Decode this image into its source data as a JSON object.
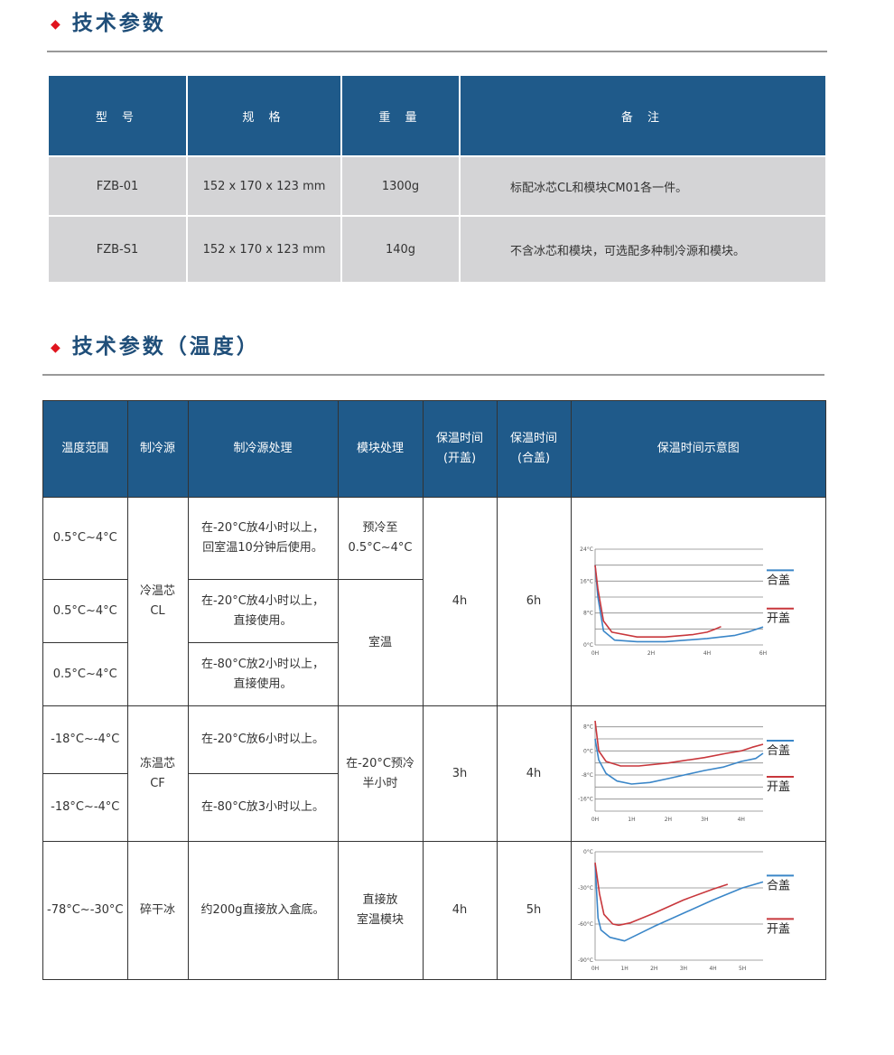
{
  "section1": {
    "title": "技术参数"
  },
  "table1": {
    "headers": [
      "型 号",
      "规 格",
      "重 量",
      "备 注"
    ],
    "rows": [
      [
        "FZB-01",
        "152 x 170 x 123 mm",
        "1300g",
        "标配冰芯CL和模块CM01各一件。"
      ],
      [
        "FZB-S1",
        "152 x 170 x 123 mm",
        "140g",
        "不含冰芯和模块，可选配多种制冷源和模块。"
      ]
    ]
  },
  "section2": {
    "title": "技术参数（温度）"
  },
  "table2": {
    "headers": [
      "温度范围",
      "制冷源",
      "制冷源处理",
      "模块处理",
      "保温时间\n(开盖)",
      "保温时间\n(合盖)",
      "保温时间示意图"
    ],
    "ranges": [
      "0.5°C~4°C",
      "0.5°C~4°C",
      "0.5°C~4°C",
      "-18°C~-4°C",
      "-18°C~-4°C",
      "-78°C~-30°C"
    ],
    "sources": [
      "冷温芯\nCL",
      "冻温芯\nCF",
      "碎干冰"
    ],
    "treatments": [
      "在-20°C放4小时以上，\n回室温10分钟后使用。",
      "在-20°C放4小时以上，\n直接使用。",
      "在-80°C放2小时以上，\n直接使用。",
      "在-20°C放6小时以上。",
      "在-80°C放3小时以上。",
      "约200g直接放入盒底。"
    ],
    "modules": [
      "预冷至\n0.5°C~4°C",
      "室温",
      "在-20°C预冷\n半小时",
      "直接放\n室温模块"
    ],
    "open_times": [
      "4h",
      "3h",
      "4h"
    ],
    "closed_times": [
      "6h",
      "4h",
      "5h"
    ]
  },
  "chart_data": [
    {
      "type": "line",
      "xlim": [
        0,
        6
      ],
      "ylim": [
        0,
        24
      ],
      "grid_step": 4,
      "yticks": [
        0,
        8,
        16,
        24
      ],
      "ytick_labels": [
        "0°C",
        "8°C",
        "16°C",
        "24°C"
      ],
      "xticks": [
        0,
        2,
        4,
        6
      ],
      "xtick_labels": [
        "0H",
        "2H",
        "4H",
        "6H"
      ],
      "legend": "right",
      "series": [
        {
          "name": "合盖",
          "color": "#3a86c8",
          "points": [
            [
              0,
              20
            ],
            [
              0.1,
              12
            ],
            [
              0.3,
              3.5
            ],
            [
              0.7,
              1.2
            ],
            [
              1.5,
              0.8
            ],
            [
              2.5,
              0.8
            ],
            [
              4,
              1.6
            ],
            [
              5,
              2.4
            ],
            [
              5.5,
              3.3
            ],
            [
              6,
              4.5
            ]
          ]
        },
        {
          "name": "开盖",
          "color": "#c8373c",
          "points": [
            [
              0,
              20
            ],
            [
              0.1,
              14
            ],
            [
              0.3,
              6
            ],
            [
              0.6,
              3.2
            ],
            [
              1.5,
              2
            ],
            [
              2.5,
              2
            ],
            [
              3.5,
              2.6
            ],
            [
              4,
              3.2
            ],
            [
              4.3,
              4
            ],
            [
              4.5,
              4.6
            ]
          ]
        }
      ]
    },
    {
      "type": "line",
      "xlim": [
        0,
        4.6
      ],
      "ylim": [
        -20,
        10
      ],
      "grid_step": 4,
      "yticks": [
        -16,
        -8,
        0,
        8
      ],
      "ytick_labels": [
        "-16°C",
        "-8°C",
        "0°C",
        "8°C"
      ],
      "xticks": [
        0,
        1,
        2,
        3,
        4
      ],
      "xtick_labels": [
        "0H",
        "1H",
        "2H",
        "3H",
        "4H"
      ],
      "legend": "right",
      "series": [
        {
          "name": "合盖",
          "color": "#3a86c8",
          "points": [
            [
              0,
              4
            ],
            [
              0.1,
              -3
            ],
            [
              0.3,
              -7.5
            ],
            [
              0.6,
              -10
            ],
            [
              1,
              -11
            ],
            [
              1.5,
              -10.5
            ],
            [
              2,
              -9.2
            ],
            [
              3,
              -6.5
            ],
            [
              3.5,
              -5.4
            ],
            [
              4,
              -3.5
            ],
            [
              4.4,
              -2.5
            ],
            [
              4.6,
              -0.8
            ]
          ]
        },
        {
          "name": "开盖",
          "color": "#c8373c",
          "points": [
            [
              0,
              10
            ],
            [
              0.1,
              0
            ],
            [
              0.3,
              -3.5
            ],
            [
              0.7,
              -5
            ],
            [
              1.2,
              -5
            ],
            [
              2,
              -4
            ],
            [
              3,
              -2.2
            ],
            [
              3.6,
              -0.8
            ],
            [
              4,
              0
            ],
            [
              4.3,
              1.2
            ],
            [
              4.6,
              2.2
            ]
          ]
        }
      ]
    },
    {
      "type": "line",
      "xlim": [
        0,
        5.7
      ],
      "ylim": [
        -90,
        0
      ],
      "grid_step": 30,
      "yticks": [
        -90,
        -60,
        -30,
        0
      ],
      "ytick_labels": [
        "-90°C",
        "-60°C",
        "-30°C",
        "0°C"
      ],
      "xticks": [
        0,
        1,
        2,
        3,
        4,
        5
      ],
      "xtick_labels": [
        "0H",
        "1H",
        "2H",
        "3H",
        "4H",
        "5H"
      ],
      "legend": "right",
      "series": [
        {
          "name": "合盖",
          "color": "#3a86c8",
          "points": [
            [
              0,
              -10
            ],
            [
              0.1,
              -55
            ],
            [
              0.2,
              -65
            ],
            [
              0.5,
              -71
            ],
            [
              1,
              -74
            ],
            [
              1.5,
              -68
            ],
            [
              2,
              -62
            ],
            [
              3,
              -51
            ],
            [
              4,
              -40
            ],
            [
              5,
              -30
            ],
            [
              5.7,
              -25
            ]
          ]
        },
        {
          "name": "开盖",
          "color": "#c8373c",
          "points": [
            [
              0,
              -9
            ],
            [
              0.15,
              -35
            ],
            [
              0.3,
              -52
            ],
            [
              0.6,
              -60
            ],
            [
              0.8,
              -61
            ],
            [
              1.2,
              -59
            ],
            [
              2,
              -51
            ],
            [
              3,
              -40
            ],
            [
              4,
              -31
            ],
            [
              4.5,
              -27
            ]
          ]
        }
      ]
    }
  ]
}
